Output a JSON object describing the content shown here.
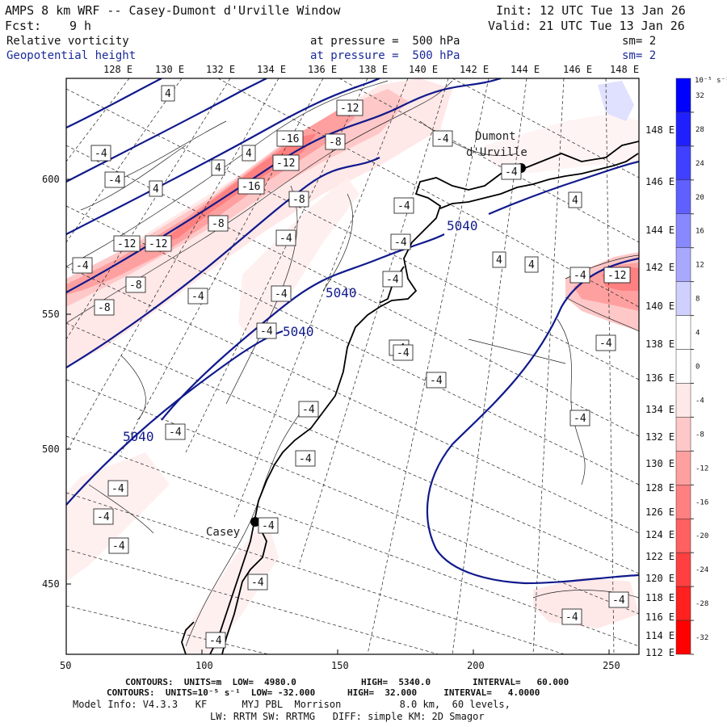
{
  "header": {
    "title": "AMPS 8 km WRF -- Casey-Dumont d'Urville Window",
    "init": "Init: 12 UTC Tue 13 Jan 26",
    "fcst_label": "Fcst:",
    "fcst_hours": "9 h",
    "valid": "Valid: 21 UTC Tue 13 Jan 26",
    "field1_name": "Relative vorticity",
    "field1_level": "at pressure =  500 hPa",
    "field1_smooth": "sm= 2",
    "field2_name": "Geopotential height",
    "field2_level": "at pressure =  500 hPa",
    "field2_smooth": "sm= 2"
  },
  "map": {
    "top_longitudes": [
      "128 E",
      "130 E",
      "132 E",
      "134 E",
      "136 E",
      "138 E",
      "140 E",
      "142 E",
      "144 E",
      "146 E",
      "148 E"
    ],
    "right_longitudes": [
      "148 E",
      "146 E",
      "144 E",
      "142 E",
      "140 E",
      "138 E",
      "136 E",
      "134 E",
      "132 E",
      "130 E",
      "128 E",
      "126 E",
      "124 E",
      "122 E",
      "120 E",
      "118 E",
      "116 E",
      "114 E",
      "112 E"
    ],
    "x_ticks": [
      "50",
      "100",
      "150",
      "200",
      "250"
    ],
    "y_ticks": [
      "600",
      "550",
      "500",
      "450"
    ],
    "stations": [
      {
        "name_line1": "Dumont",
        "name_line2": "d'Urville"
      },
      {
        "name_line1": "Casey",
        "name_line2": ""
      }
    ],
    "height_labels": [
      "5040",
      "5040",
      "5040",
      "5040"
    ],
    "vort_labels": [
      "4",
      "-12",
      "-16",
      "-8",
      "-4",
      "-4",
      "4",
      "-4",
      "-12",
      "4",
      "-16",
      "-8",
      "4",
      "-4",
      "4",
      "-8",
      "-4",
      "-12",
      "-4",
      "-4",
      "-12",
      "-8",
      "-4",
      "-4",
      "4",
      "4",
      "-4",
      "-12",
      "-8",
      "-4",
      "-4",
      "-4",
      "-4",
      "-4",
      "-4",
      "-4",
      "-4",
      "-4",
      "-4",
      "-4",
      "-4",
      "-4",
      "-4",
      "-4",
      "-4",
      "-4",
      "-4",
      "-4"
    ]
  },
  "colorbar": {
    "unit": "10⁻⁵ s⁻¹",
    "labels": [
      "32",
      "28",
      "24",
      "20",
      "16",
      "12",
      "8",
      "4",
      "0",
      "-4",
      "-8",
      "-12",
      "-16",
      "-20",
      "-24",
      "-28",
      "-32"
    ],
    "colors": [
      "#0000ff",
      "#2020ff",
      "#4040ff",
      "#6060ff",
      "#8888ff",
      "#a8a8ff",
      "#d0d0ff",
      "#ffffff",
      "#ffffff",
      "#ffe8e8",
      "#ffc8c8",
      "#ffa0a0",
      "#ff8080",
      "#ff6060",
      "#ff4040",
      "#ff2020",
      "#ff0000"
    ]
  },
  "footer": {
    "line1_left": "CONTOURS:  UNITS=m  LOW=  4980.0",
    "line1_mid": "HIGH=  5340.0",
    "line1_right": "INTERVAL=   60.000",
    "line2": "CONTOURS:  UNITS=10⁻⁵ s⁻¹  LOW= -32.000      HIGH=  32.000     INTERVAL=   4.0000",
    "line3": "Model Info: V4.3.3   KF      MYJ PBL  Morrison          8.0 km,  60 levels,",
    "line4": "LW: RRTM SW: RRTMG   DIFF: simple KM: 2D Smagor"
  }
}
